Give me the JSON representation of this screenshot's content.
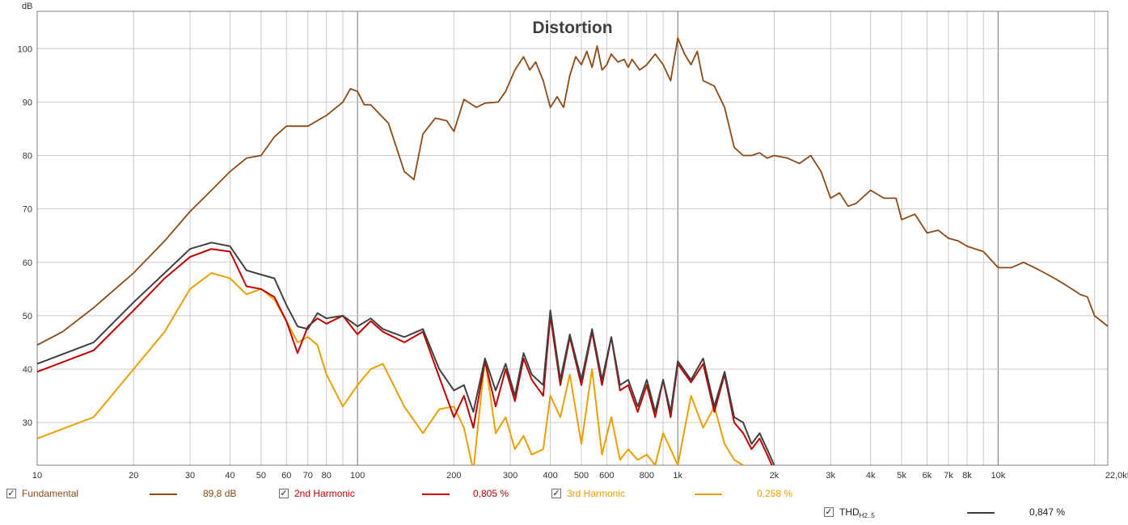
{
  "chart_data": {
    "type": "line",
    "title": "Distortion",
    "ylabel": "dB",
    "x_scale": "log",
    "xlim": [
      10,
      22000
    ],
    "ylim": [
      22,
      107
    ],
    "grid": true,
    "x_ticks": [
      10,
      20,
      30,
      40,
      50,
      60,
      70,
      80,
      100,
      200,
      300,
      400,
      500,
      600,
      800,
      1000,
      2000,
      3000,
      4000,
      5000,
      6000,
      7000,
      8000,
      10000,
      22000
    ],
    "x_tick_labels": [
      "10",
      "20",
      "30",
      "40",
      "50",
      "60",
      "70",
      "80",
      "100",
      "200",
      "300",
      "400",
      "500",
      "600",
      "800",
      "1k",
      "2k",
      "3k",
      "4k",
      "5k",
      "6k",
      "7k",
      "8k",
      "10k",
      "22,0kHz"
    ],
    "y_ticks": [
      30,
      40,
      50,
      60,
      70,
      80,
      90,
      100
    ],
    "y_tick_labels": [
      "30",
      "40",
      "50",
      "60",
      "70",
      "80",
      "90",
      "100"
    ],
    "series": [
      {
        "name": "Fundamental",
        "color": "#8b4a16",
        "x": [
          10,
          12,
          15,
          20,
          25,
          30,
          35,
          40,
          45,
          50,
          55,
          60,
          70,
          80,
          90,
          95,
          100,
          105,
          110,
          125,
          140,
          150,
          160,
          175,
          190,
          200,
          215,
          235,
          250,
          275,
          290,
          310,
          330,
          345,
          360,
          380,
          400,
          420,
          440,
          460,
          480,
          500,
          520,
          540,
          560,
          580,
          600,
          620,
          650,
          680,
          700,
          720,
          760,
          800,
          850,
          900,
          950,
          1000,
          1050,
          1100,
          1150,
          1200,
          1300,
          1400,
          1500,
          1600,
          1700,
          1800,
          1900,
          2000,
          2200,
          2400,
          2600,
          2800,
          3000,
          3200,
          3400,
          3600,
          4000,
          4400,
          4800,
          5000,
          5500,
          6000,
          6500,
          7000,
          7500,
          8000,
          9000,
          10000,
          11000,
          12000,
          13000,
          14000,
          15000,
          16000,
          17000,
          18000,
          19000,
          20000,
          21000,
          22000
        ],
        "y": [
          44.5,
          47,
          51.5,
          58,
          64,
          69.5,
          73.5,
          77,
          79.5,
          80,
          83.5,
          85.5,
          85.5,
          87.5,
          90,
          92.5,
          92,
          89.5,
          89.5,
          86,
          77,
          75.5,
          84,
          87,
          86.5,
          84.5,
          90.5,
          89,
          89.8,
          90,
          92,
          96,
          98.5,
          96,
          97.5,
          94,
          89,
          91,
          89,
          95,
          98.5,
          97,
          99.5,
          96.5,
          100.5,
          96,
          97,
          99,
          97.5,
          98,
          96.5,
          98,
          96,
          97,
          99,
          97,
          94,
          102,
          99,
          97,
          99.5,
          94,
          93,
          89,
          81.5,
          80,
          80,
          80.5,
          79.5,
          80,
          79.5,
          78.5,
          80,
          77,
          72,
          73,
          70.5,
          71,
          73.5,
          72,
          72,
          68,
          69,
          65.5,
          66,
          64.5,
          64,
          63,
          62,
          59,
          59,
          60,
          59,
          58,
          57,
          56,
          55,
          54,
          53.5,
          50,
          49,
          48
        ]
      },
      {
        "name": "2nd Harmonic",
        "value": "0,805 %",
        "color": "#c00000",
        "x": [
          10,
          15,
          20,
          25,
          30,
          35,
          40,
          45,
          50,
          55,
          60,
          65,
          70,
          75,
          80,
          90,
          100,
          110,
          120,
          140,
          160,
          180,
          200,
          215,
          230,
          250,
          270,
          290,
          310,
          330,
          350,
          380,
          400,
          430,
          460,
          500,
          540,
          580,
          620,
          660,
          700,
          750,
          800,
          850,
          900,
          950,
          1000,
          1100,
          1200,
          1300,
          1400,
          1500,
          1600,
          1700,
          1800,
          1900,
          2000
        ],
        "y": [
          39.5,
          43.5,
          51,
          57,
          61,
          62.5,
          62,
          55.5,
          55,
          53.5,
          49,
          43,
          48,
          49.5,
          48.5,
          50,
          46.5,
          49,
          47,
          45,
          47,
          38.5,
          31,
          35,
          29,
          41.5,
          33,
          40,
          34,
          42,
          38,
          35,
          50,
          37,
          46,
          37,
          47,
          37,
          46,
          36,
          37,
          32,
          37,
          31,
          38,
          31,
          41,
          37.5,
          41,
          32,
          39,
          30,
          28,
          25,
          27,
          24,
          21
        ]
      },
      {
        "name": "3rd Harmonic",
        "value": "0,258 %",
        "color": "#e8a000",
        "x": [
          10,
          15,
          20,
          25,
          30,
          35,
          40,
          45,
          50,
          55,
          60,
          65,
          70,
          75,
          80,
          90,
          100,
          110,
          120,
          140,
          160,
          180,
          200,
          215,
          230,
          250,
          270,
          290,
          310,
          330,
          350,
          380,
          400,
          430,
          460,
          500,
          540,
          580,
          620,
          660,
          700,
          750,
          800,
          850,
          900,
          950,
          1000,
          1100,
          1200,
          1300,
          1400,
          1500,
          1600,
          1700
        ],
        "y": [
          27,
          31,
          40,
          47,
          55,
          58,
          57,
          54,
          55,
          53,
          49,
          45,
          46,
          44.5,
          39,
          33,
          37,
          40,
          41,
          33,
          28,
          32.5,
          33,
          29,
          21,
          42,
          28,
          31,
          25,
          27.5,
          24,
          25,
          35,
          31,
          39,
          26,
          40,
          24,
          31,
          23,
          25,
          23,
          24,
          22,
          28,
          25,
          22,
          35,
          29,
          33,
          26,
          23,
          22,
          21
        ]
      },
      {
        "name": "THD",
        "name_sub": "H2..5",
        "value": "0,847 %",
        "color": "#404040",
        "x": [
          10,
          15,
          20,
          25,
          30,
          35,
          40,
          45,
          50,
          55,
          60,
          65,
          70,
          75,
          80,
          90,
          100,
          110,
          120,
          140,
          160,
          180,
          200,
          215,
          230,
          250,
          270,
          290,
          310,
          330,
          350,
          380,
          400,
          430,
          460,
          500,
          540,
          580,
          620,
          660,
          700,
          750,
          800,
          850,
          900,
          950,
          1000,
          1100,
          1200,
          1300,
          1400,
          1500,
          1600,
          1700,
          1800,
          1900,
          2000
        ],
        "y": [
          41,
          45,
          52.5,
          58,
          62.5,
          63.7,
          63,
          58.5,
          57.7,
          57,
          52,
          48,
          47.5,
          50.5,
          49.5,
          50,
          48,
          49.5,
          47.5,
          46,
          47.5,
          40,
          36,
          37,
          32,
          42,
          36,
          41,
          35,
          43,
          39,
          37,
          51,
          38,
          46.5,
          38,
          47.5,
          38,
          46,
          37,
          38,
          33,
          38,
          32,
          38,
          32,
          41.5,
          38,
          42,
          33,
          39.5,
          31,
          30,
          26,
          28,
          25,
          22
        ]
      }
    ],
    "fundamental_level": "89,8 dB",
    "legend_position": "bottom"
  },
  "legend": [
    {
      "label": "Fundamental",
      "value": "89,8 dB",
      "checked": "✓"
    },
    {
      "label": "2nd Harmonic",
      "value": "0,805 %",
      "checked": "✓"
    },
    {
      "label": "3rd Harmonic",
      "value": "0,258 %",
      "checked": "✓"
    },
    {
      "label": "THD",
      "label_sub": "H2..5",
      "value": "0,847 %",
      "checked": "✓"
    }
  ],
  "colors": {
    "fundamental": "#8b4a16",
    "h2": "#c00000",
    "h3": "#e8a000",
    "thd": "#404040",
    "grid": "#c8c8c8",
    "grid_major": "#707070",
    "frame": "#808080"
  }
}
